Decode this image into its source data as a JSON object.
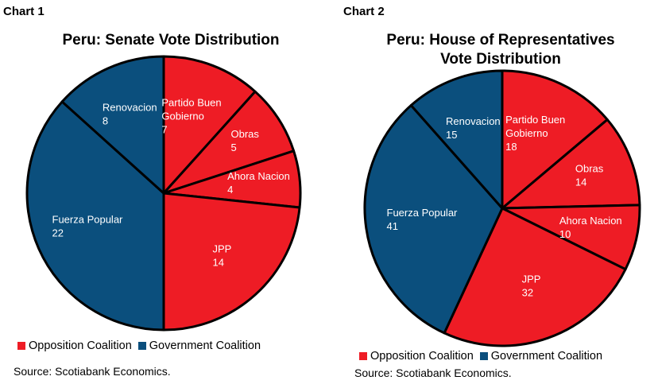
{
  "colors": {
    "opposition": "#ee1c25",
    "government": "#0b4f7d"
  },
  "charts": [
    {
      "label": "Chart 1",
      "title_lines": [
        "Peru: Senate Vote Distribution"
      ],
      "legend": [
        {
          "name": "Opposition Coalition",
          "color_key": "opposition"
        },
        {
          "name": "Government Coalition",
          "color_key": "government"
        }
      ],
      "source": "Source: Scotiabank Economics."
    },
    {
      "label": "Chart 2",
      "title_lines": [
        "Peru: House of Representatives",
        "Vote Distribution"
      ],
      "legend": [
        {
          "name": "Opposition Coalition",
          "color_key": "opposition"
        },
        {
          "name": "Government Coalition",
          "color_key": "government"
        }
      ],
      "source": "Source: Scotiabank Economics."
    }
  ],
  "chart_data": [
    {
      "type": "pie",
      "title": "Peru: Senate Vote Distribution",
      "categories": [
        "Partido Buen Gobierno",
        "Obras",
        "Ahora Nacion",
        "JPP",
        "Fuerza Popular",
        "Renovacion"
      ],
      "label_lines": [
        [
          "Partido Buen",
          "Gobierno"
        ],
        [
          "Obras"
        ],
        [
          "Ahora Nacion"
        ],
        [
          "JPP"
        ],
        [
          "Fuerza Popular"
        ],
        [
          "Renovacion"
        ]
      ],
      "values": [
        7,
        5,
        4,
        14,
        22,
        8
      ],
      "coalition": [
        "opposition",
        "opposition",
        "opposition",
        "opposition",
        "government",
        "government"
      ],
      "legend_position": "bottom"
    },
    {
      "type": "pie",
      "title": "Peru: House of Representatives Vote Distribution",
      "categories": [
        "Partido Buen Gobierno",
        "Obras",
        "Ahora Nacion",
        "JPP",
        "Fuerza Popular",
        "Renovacion"
      ],
      "label_lines": [
        [
          "Partido Buen",
          "Gobierno"
        ],
        [
          "Obras"
        ],
        [
          "Ahora Nacion"
        ],
        [
          "JPP"
        ],
        [
          "Fuerza Popular"
        ],
        [
          "Renovacion"
        ]
      ],
      "values": [
        18,
        14,
        10,
        32,
        41,
        15
      ],
      "coalition": [
        "opposition",
        "opposition",
        "opposition",
        "opposition",
        "government",
        "government"
      ],
      "legend_position": "bottom"
    }
  ]
}
